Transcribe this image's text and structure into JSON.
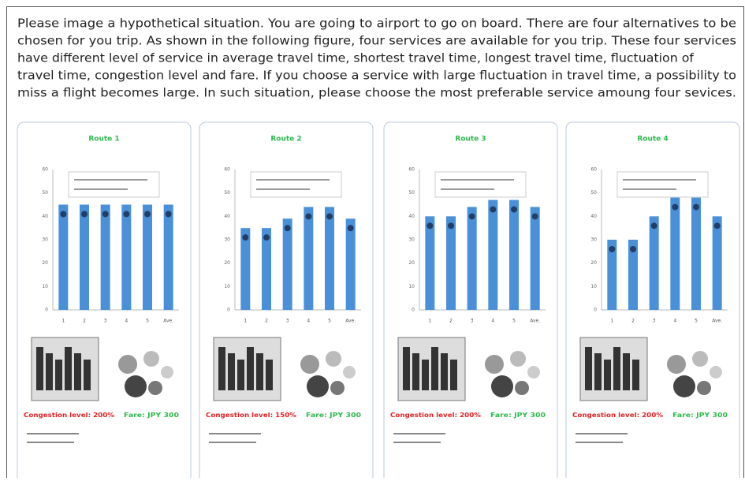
{
  "instruction": [
    "Please image a hypothetical situation. You are going to airport to go on board. There are four alternatives to be",
    "chosen for you trip. As shown in the following figure, four services are available for you trip. These four services",
    "have different level of service in average travel time, shortest travel time, longest travel time, fluctuation of",
    "travel time, congestion level and fare. If you choose a service with large fluctuation in travel time, a possibility to",
    "miss a flight becomes large. In such situation, please choose the most preferable service amoung four sevices."
  ],
  "categories": [
    "1",
    "2",
    "3",
    "4",
    "5",
    "Ave."
  ],
  "ylim": [
    0,
    60
  ],
  "yticks": [
    0,
    10,
    20,
    30,
    40,
    50,
    60
  ],
  "routes": [
    {
      "title": "Route 1",
      "values": [
        45,
        45,
        45,
        45,
        45,
        45
      ],
      "congestion": "Congestion level: 200%",
      "fare": "Fare: JPY 300"
    },
    {
      "title": "Route 2",
      "values": [
        35,
        35,
        39,
        44,
        44,
        39
      ],
      "congestion": "Congestion level: 150%",
      "fare": "Fare: JPY 300"
    },
    {
      "title": "Route 3",
      "values": [
        40,
        40,
        44,
        47,
        47,
        44
      ],
      "congestion": "Congestion level: 200%",
      "fare": "Fare: JPY 300"
    },
    {
      "title": "Route 4",
      "values": [
        30,
        30,
        40,
        48,
        48,
        40
      ],
      "congestion": "Congestion level: 200%",
      "fare": "Fare: JPY 300"
    }
  ]
}
